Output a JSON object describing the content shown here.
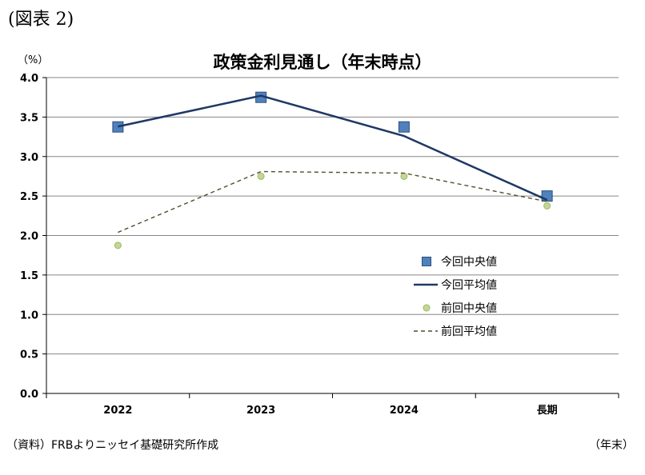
{
  "figure_label": "(図表 2)",
  "source_note": "（資料）FRBよりニッセイ基礎研究所作成",
  "colors": {
    "current_marker_fill": "#4f81bd",
    "current_marker_stroke": "#2c4f7c",
    "current_line": "#1f3864",
    "prev_marker_fill": "#c3d69b",
    "prev_marker_stroke": "#9bbb59",
    "prev_line": "#4f4f2f",
    "grid": "#868686"
  },
  "chart_data": {
    "type": "line",
    "title": "政策金利見通し（年末時点）",
    "ylabel": "（%）",
    "xlabel": "（年末）",
    "categories": [
      "2022",
      "2023",
      "2024",
      "長期"
    ],
    "ylim": [
      0,
      4
    ],
    "yticks": [
      "0.0",
      "0.5",
      "1.0",
      "1.5",
      "2.0",
      "2.5",
      "3.0",
      "3.5",
      "4.0"
    ],
    "grid": true,
    "legend_position": "right",
    "series": [
      {
        "name": "今回中央値",
        "kind": "marker-square",
        "values": [
          3.375,
          3.75,
          3.375,
          2.5
        ]
      },
      {
        "name": "今回平均値",
        "kind": "line-solid",
        "values": [
          3.38,
          3.77,
          3.26,
          2.45
        ]
      },
      {
        "name": "前回中央値",
        "kind": "marker-circle",
        "values": [
          1.875,
          2.75,
          2.75,
          2.375
        ]
      },
      {
        "name": "前回平均値",
        "kind": "line-dashed",
        "values": [
          2.04,
          2.81,
          2.79,
          2.43
        ]
      }
    ]
  }
}
